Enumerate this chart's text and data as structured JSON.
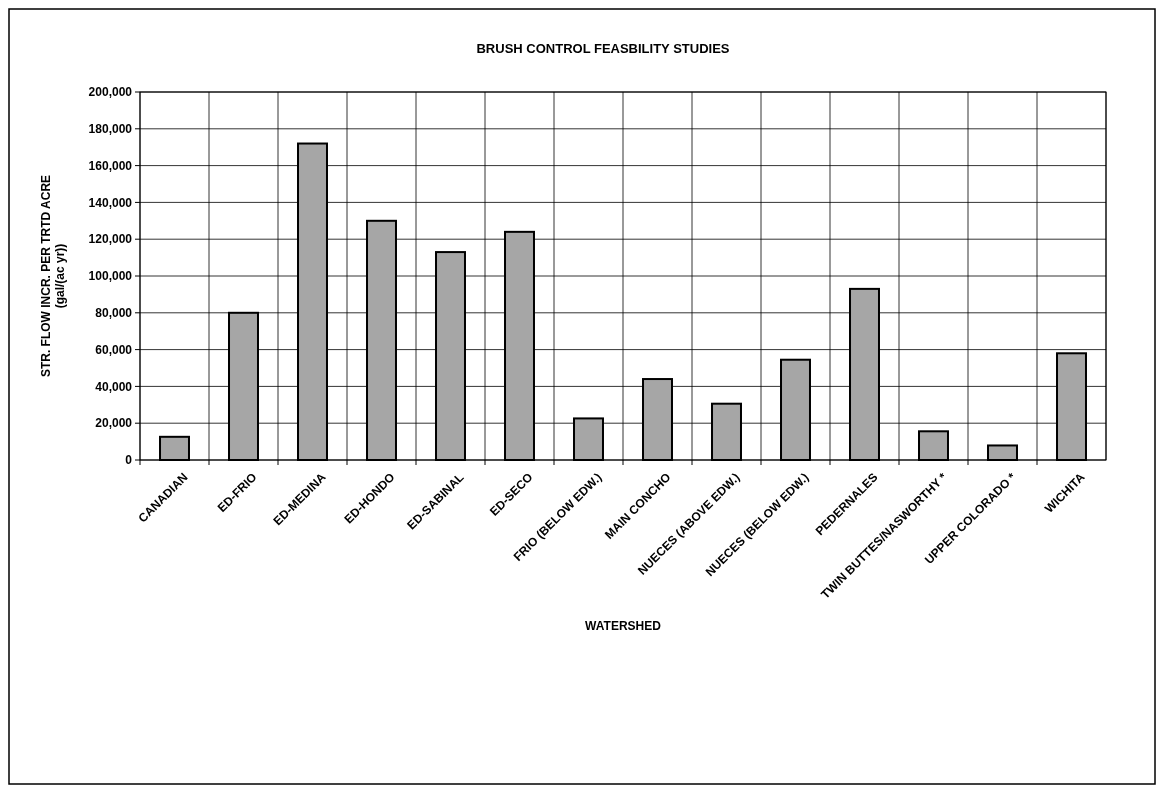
{
  "chart_data": {
    "type": "bar",
    "title": "BRUSH CONTROL FEASBILITY STUDIES",
    "xlabel": "WATERSHED",
    "ylabel": "STR. FLOW INCR. PER TRTD ACRE\n(gal/(ac yr))",
    "categories": [
      "CANADIAN",
      "ED-FRIO",
      "ED-MEDINA",
      "ED-HONDO",
      "ED-SABINAL",
      "ED-SECO",
      "FRIO (BELOW EDW.)",
      "MAIN CONCHO",
      "NUECES (ABOVE EDW.)",
      "NUECES (BELOW EDW.)",
      "PEDERNALES",
      "TWIN BUTTES/NASWORTHY *",
      "UPPER COLORADO *",
      "WICHITA"
    ],
    "values": [
      12600,
      80000,
      172000,
      130000,
      113000,
      124000,
      22600,
      44000,
      30600,
      54500,
      93000,
      15600,
      7900,
      58000
    ],
    "color": "#a6a6a6",
    "ylim": [
      0,
      200000
    ],
    "yticks": [
      {
        "value": 0,
        "label": "0"
      },
      {
        "value": 20000,
        "label": "20,000"
      },
      {
        "value": 40000,
        "label": "40,000"
      },
      {
        "value": 60000,
        "label": "60,000"
      },
      {
        "value": 80000,
        "label": "80,000"
      },
      {
        "value": 100000,
        "label": "100,000"
      },
      {
        "value": 120000,
        "label": "120,000"
      },
      {
        "value": 140000,
        "label": "140,000"
      },
      {
        "value": 160000,
        "label": "160,000"
      },
      {
        "value": 180000,
        "label": "180,000"
      },
      {
        "value": 200000,
        "label": "200,000"
      }
    ],
    "grid": true
  }
}
